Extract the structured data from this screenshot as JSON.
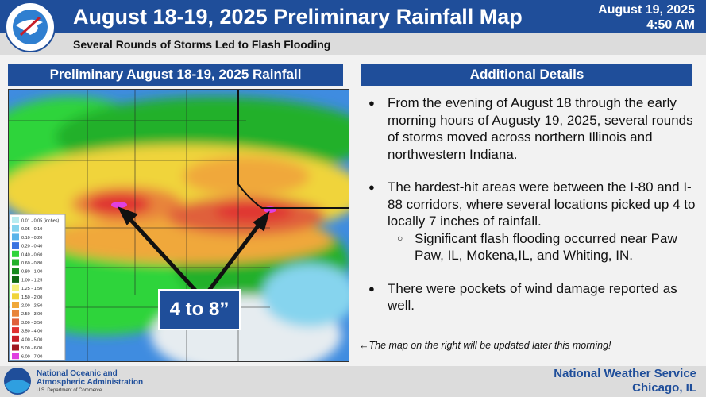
{
  "header": {
    "title": "August 18-19, 2025 Preliminary Rainfall Map",
    "subtitle": "Several Rounds of Storms Led to Flash Flooding",
    "date": "August 19, 2025",
    "time": "4:50 AM"
  },
  "map_panel": {
    "title": "Preliminary August 18-19, 2025 Rainfall",
    "annotation": "4 to 8”",
    "legend": [
      {
        "label": "0.01 - 0.05 (inches)",
        "color": "#b9ecf0"
      },
      {
        "label": "0.05 - 0.10",
        "color": "#86d4ee"
      },
      {
        "label": "0.10 - 0.20",
        "color": "#5ab4ea"
      },
      {
        "label": "0.20 - 0.40",
        "color": "#3a74e0"
      },
      {
        "label": "0.40 - 0.60",
        "color": "#2fd43a"
      },
      {
        "label": "0.60 - 0.80",
        "color": "#22b02a"
      },
      {
        "label": "0.80 - 1.00",
        "color": "#178a1e"
      },
      {
        "label": "1.00 - 1.25",
        "color": "#0f6a14"
      },
      {
        "label": "1.25 - 1.50",
        "color": "#f4f07a"
      },
      {
        "label": "1.50 - 2.00",
        "color": "#f0d43a"
      },
      {
        "label": "2.00 - 2.50",
        "color": "#f0a83a"
      },
      {
        "label": "2.50 - 3.00",
        "color": "#e8843a"
      },
      {
        "label": "3.00 - 3.50",
        "color": "#e0603a"
      },
      {
        "label": "3.50 - 4.00",
        "color": "#e03030"
      },
      {
        "label": "4.00 - 5.00",
        "color": "#c81e28"
      },
      {
        "label": "5.00 - 6.00",
        "color": "#a01820"
      },
      {
        "label": "6.00 - 7.00",
        "color": "#e040e0"
      }
    ]
  },
  "details_panel": {
    "title": "Additional Details",
    "bullets": [
      {
        "text": "From the evening of August 18 through the early morning hours of Augusty 19, 2025, several rounds of storms moved across northern Illinois and northwestern Indiana."
      },
      {
        "text": "The hardest-hit areas were between the I-80 and I-88 corridors, where several locations picked up 4 to locally 7 inches of rainfall.",
        "sub": "Significant flash flooding occurred near Paw Paw, IL, Mokena,IL, and Whiting, IN."
      },
      {
        "text": "There were pockets of wind damage reported as well."
      }
    ],
    "note": "←The map on the right will be updated later this morning!"
  },
  "footer": {
    "noaa_line1": "National Oceanic and",
    "noaa_line2": "Atmospheric Administration",
    "noaa_line3": "U.S. Department of Commerce",
    "nws_line1": "National Weather Service",
    "nws_line2": "Chicago, IL"
  }
}
